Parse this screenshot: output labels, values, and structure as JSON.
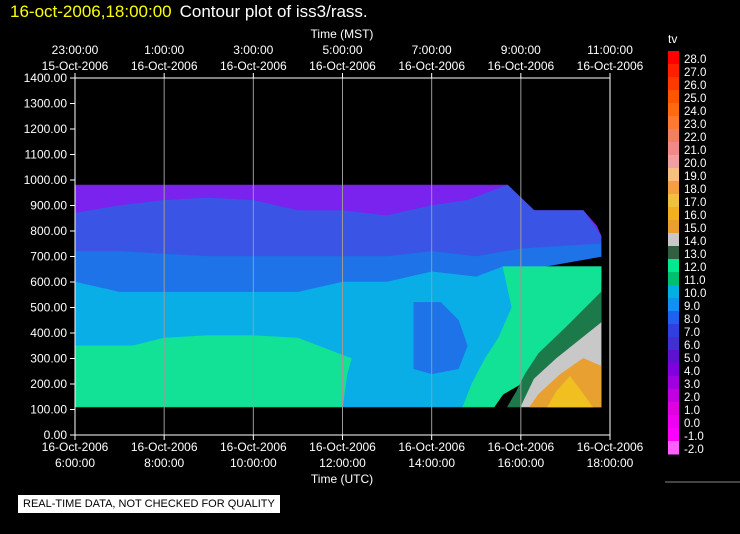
{
  "title": {
    "datetime": "16-oct-2006,18:00:00",
    "plot": "Contour plot of iss3/rass."
  },
  "note": "REAL-TIME DATA, NOT CHECKED FOR QUALITY",
  "chart_data": {
    "type": "contour",
    "variable": "tv",
    "xlabel_top": "Time (MST)",
    "xlabel_bottom": "Time (UTC)",
    "top_ticks": [
      {
        "time": "23:00:00",
        "date": "15-Oct-2006"
      },
      {
        "time": "1:00:00",
        "date": "16-Oct-2006"
      },
      {
        "time": "3:00:00",
        "date": "16-Oct-2006"
      },
      {
        "time": "5:00:00",
        "date": "16-Oct-2006"
      },
      {
        "time": "7:00:00",
        "date": "16-Oct-2006"
      },
      {
        "time": "9:00:00",
        "date": "16-Oct-2006"
      },
      {
        "time": "11:00:00",
        "date": "16-Oct-2006"
      }
    ],
    "bottom_ticks": [
      {
        "date": "16-Oct-2006",
        "time": "6:00:00"
      },
      {
        "date": "16-Oct-2006",
        "time": "8:00:00"
      },
      {
        "date": "16-Oct-2006",
        "time": "10:00:00"
      },
      {
        "date": "16-Oct-2006",
        "time": "12:00:00"
      },
      {
        "date": "16-Oct-2006",
        "time": "14:00:00"
      },
      {
        "date": "16-Oct-2006",
        "time": "16:00:00"
      },
      {
        "date": "16-Oct-2006",
        "time": "18:00:00"
      }
    ],
    "y_ticks": [
      "1400.00",
      "1300.00",
      "1200.00",
      "1100.00",
      "1000.00",
      "900.00",
      "800.00",
      "700.00",
      "600.00",
      "500.00",
      "400.00",
      "300.00",
      "200.00",
      "100.00",
      "0.00"
    ],
    "ylim": [
      0,
      1400
    ],
    "xlim_utc_hours": [
      6,
      18
    ],
    "legend_levels": [
      "28.0",
      "27.0",
      "26.0",
      "25.0",
      "24.0",
      "23.0",
      "22.0",
      "21.0",
      "20.0",
      "19.0",
      "18.0",
      "17.0",
      "16.0",
      "15.0",
      "14.0",
      "13.0",
      "12.0",
      "11.0",
      "10.0",
      "9.0",
      "8.0",
      "7.0",
      "6.0",
      "5.0",
      "4.0",
      "3.0",
      "2.0",
      "1.0",
      "0.0",
      "-1.0",
      "-2.0"
    ],
    "legend_colors": [
      "#ff0000",
      "#ff2000",
      "#ff3a00",
      "#ff5500",
      "#ff6a10",
      "#ff7a30",
      "#f08060",
      "#f08a8a",
      "#f0a0a0",
      "#f7c080",
      "#f5a040",
      "#f0c040",
      "#f0b020",
      "#e8a030",
      "#c8c8c8",
      "#306040",
      "#00e890",
      "#00c070",
      "#00b0e0",
      "#1090f0",
      "#2060f0",
      "#3040e0",
      "#4030d0",
      "#6010d0",
      "#8000e0",
      "#a000e0",
      "#c000e0",
      "#e000e0",
      "#f000f0",
      "#ff00ff",
      "#ff60ff"
    ],
    "regions": [
      {
        "level": "5.0",
        "color": "#7a22ee",
        "points": [
          [
            6.0,
            980
          ],
          [
            15.7,
            980
          ],
          [
            16.3,
            880
          ],
          [
            17.4,
            880
          ],
          [
            17.7,
            820
          ],
          [
            17.8,
            780
          ],
          [
            16.0,
            780
          ],
          [
            15.0,
            800
          ],
          [
            14.0,
            800
          ],
          [
            13.0,
            800
          ],
          [
            12.0,
            820
          ],
          [
            11.0,
            840
          ],
          [
            10.0,
            860
          ],
          [
            9.0,
            860
          ],
          [
            8.0,
            860
          ],
          [
            7.0,
            860
          ],
          [
            6.0,
            860
          ]
        ]
      },
      {
        "level": "7.0",
        "color": "#3a55e6",
        "points": [
          [
            6.0,
            870
          ],
          [
            7.0,
            900
          ],
          [
            8.0,
            920
          ],
          [
            9.0,
            930
          ],
          [
            10.0,
            920
          ],
          [
            11.0,
            880
          ],
          [
            12.0,
            880
          ],
          [
            13.0,
            860
          ],
          [
            14.0,
            900
          ],
          [
            14.8,
            920
          ],
          [
            15.7,
            980
          ],
          [
            16.3,
            880
          ],
          [
            17.4,
            880
          ],
          [
            17.8,
            780
          ],
          [
            17.8,
            750
          ],
          [
            16.0,
            730
          ],
          [
            15.0,
            700
          ],
          [
            14.0,
            720
          ],
          [
            13.0,
            700
          ],
          [
            12.0,
            700
          ],
          [
            11.0,
            700
          ],
          [
            10.0,
            700
          ],
          [
            9.0,
            700
          ],
          [
            8.0,
            710
          ],
          [
            7.0,
            700
          ],
          [
            6.0,
            720
          ]
        ]
      },
      {
        "level": "8.0",
        "color": "#1e73e8",
        "points": [
          [
            6.0,
            720
          ],
          [
            7.0,
            720
          ],
          [
            8.0,
            710
          ],
          [
            9.0,
            700
          ],
          [
            10.0,
            700
          ],
          [
            11.0,
            700
          ],
          [
            12.0,
            700
          ],
          [
            13.0,
            700
          ],
          [
            14.0,
            720
          ],
          [
            15.0,
            700
          ],
          [
            16.0,
            730
          ],
          [
            17.8,
            750
          ],
          [
            17.8,
            700
          ],
          [
            16.5,
            660
          ],
          [
            15.6,
            660
          ],
          [
            15.0,
            620
          ],
          [
            14.0,
            640
          ],
          [
            13.0,
            600
          ],
          [
            12.0,
            600
          ],
          [
            11.0,
            560
          ],
          [
            10.0,
            560
          ],
          [
            9.0,
            560
          ],
          [
            8.0,
            560
          ],
          [
            7.0,
            560
          ],
          [
            6.0,
            600
          ]
        ]
      },
      {
        "level": "9.0",
        "color": "#0aaee6",
        "points": [
          [
            6.0,
            600
          ],
          [
            7.0,
            560
          ],
          [
            8.0,
            560
          ],
          [
            9.0,
            560
          ],
          [
            10.0,
            560
          ],
          [
            11.0,
            560
          ],
          [
            12.0,
            600
          ],
          [
            13.0,
            600
          ],
          [
            14.0,
            640
          ],
          [
            15.0,
            620
          ],
          [
            15.6,
            660
          ],
          [
            17.8,
            660
          ],
          [
            17.8,
            600
          ],
          [
            17.0,
            520
          ],
          [
            16.0,
            450
          ],
          [
            15.5,
            380
          ],
          [
            15.2,
            300
          ],
          [
            14.9,
            200
          ],
          [
            14.7,
            110
          ],
          [
            12.0,
            110
          ],
          [
            12.1,
            240
          ],
          [
            12.2,
            300
          ],
          [
            11.0,
            380
          ],
          [
            10.0,
            390
          ],
          [
            9.0,
            390
          ],
          [
            8.0,
            380
          ],
          [
            7.3,
            350
          ],
          [
            6.0,
            350
          ]
        ]
      },
      {
        "level": "8.0",
        "color": "#1e73e8",
        "points": [
          [
            13.6,
            520
          ],
          [
            14.2,
            520
          ],
          [
            14.6,
            450
          ],
          [
            14.8,
            350
          ],
          [
            14.6,
            260
          ],
          [
            14.0,
            240
          ],
          [
            13.6,
            260
          ]
        ]
      },
      {
        "level": "11.0",
        "color": "#12e296",
        "points": [
          [
            6.0,
            350
          ],
          [
            7.3,
            350
          ],
          [
            8.0,
            380
          ],
          [
            9.0,
            390
          ],
          [
            10.0,
            390
          ],
          [
            11.0,
            380
          ],
          [
            12.2,
            300
          ],
          [
            12.1,
            240
          ],
          [
            12.0,
            110
          ],
          [
            6.0,
            110
          ]
        ]
      },
      {
        "level": "11.0",
        "color": "#12e296",
        "points": [
          [
            15.6,
            660
          ],
          [
            17.8,
            660
          ],
          [
            17.8,
            440
          ],
          [
            17.0,
            350
          ],
          [
            16.6,
            300
          ],
          [
            16.3,
            240
          ],
          [
            16.0,
            200
          ],
          [
            15.6,
            160
          ],
          [
            15.4,
            110
          ],
          [
            14.7,
            110
          ],
          [
            14.9,
            200
          ],
          [
            15.2,
            300
          ],
          [
            15.5,
            380
          ],
          [
            15.8,
            500
          ]
        ]
      },
      {
        "level": "12.0",
        "color": "#1c7a4a",
        "points": [
          [
            17.8,
            560
          ],
          [
            17.0,
            420
          ],
          [
            16.4,
            320
          ],
          [
            16.1,
            240
          ],
          [
            15.9,
            170
          ],
          [
            15.7,
            110
          ],
          [
            16.0,
            110
          ],
          [
            16.3,
            220
          ],
          [
            16.8,
            300
          ],
          [
            17.8,
            440
          ]
        ]
      },
      {
        "level": "13.0",
        "color": "#c8c8c8",
        "points": [
          [
            17.8,
            440
          ],
          [
            16.8,
            300
          ],
          [
            16.3,
            220
          ],
          [
            16.0,
            110
          ],
          [
            17.8,
            110
          ]
        ]
      },
      {
        "level": "15.0",
        "color": "#e8a030",
        "points": [
          [
            17.8,
            270
          ],
          [
            17.4,
            300
          ],
          [
            16.9,
            240
          ],
          [
            16.4,
            160
          ],
          [
            16.2,
            110
          ],
          [
            17.8,
            110
          ]
        ]
      },
      {
        "level": "16.0",
        "color": "#f0c020",
        "points": [
          [
            17.1,
            230
          ],
          [
            16.8,
            170
          ],
          [
            16.6,
            110
          ],
          [
            17.6,
            110
          ],
          [
            17.4,
            160
          ]
        ]
      }
    ]
  }
}
